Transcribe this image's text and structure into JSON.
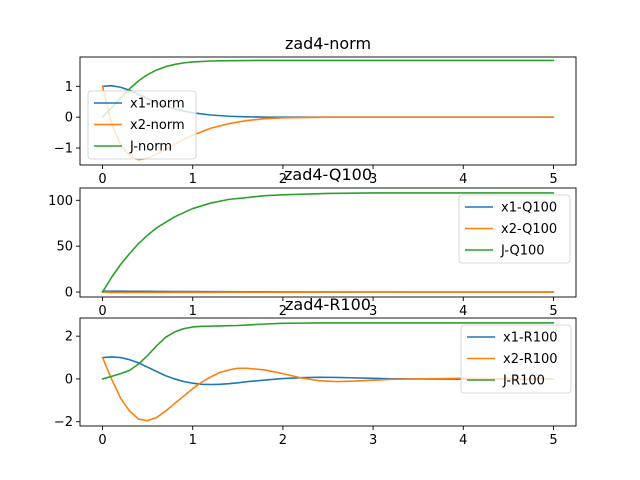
{
  "chart_data": [
    {
      "type": "line",
      "title": "zad4-norm",
      "xlabel": "",
      "ylabel": "",
      "xlim": [
        -0.25,
        5.25
      ],
      "ylim": [
        -1.55,
        1.95
      ],
      "xticks": [
        0,
        1,
        2,
        3,
        4,
        5
      ],
      "yticks": [
        -1,
        0,
        1
      ],
      "legend_placement": "lower-left",
      "grid": false,
      "x": [
        0,
        0.1,
        0.2,
        0.3,
        0.4,
        0.5,
        0.6,
        0.7,
        0.8,
        0.9,
        1.0,
        1.2,
        1.4,
        1.6,
        1.8,
        2.0,
        2.5,
        3.0,
        4.0,
        5.0
      ],
      "series": [
        {
          "name": "x1-norm",
          "color": "#1f77b4",
          "values": [
            1.0,
            1.02,
            0.97,
            0.87,
            0.74,
            0.6,
            0.47,
            0.36,
            0.27,
            0.2,
            0.14,
            0.07,
            0.03,
            0.01,
            0.0,
            0.0,
            0.0,
            0.0,
            0.0,
            0.0
          ]
        },
        {
          "name": "x2-norm",
          "color": "#ff7f0e",
          "values": [
            1.0,
            -0.2,
            -0.9,
            -1.25,
            -1.38,
            -1.33,
            -1.2,
            -1.05,
            -0.88,
            -0.72,
            -0.58,
            -0.36,
            -0.21,
            -0.11,
            -0.05,
            -0.02,
            0.0,
            0.0,
            0.0,
            0.0
          ]
        },
        {
          "name": "J-norm",
          "color": "#2ca02c",
          "values": [
            0.0,
            0.3,
            0.62,
            0.92,
            1.18,
            1.38,
            1.53,
            1.64,
            1.71,
            1.76,
            1.79,
            1.82,
            1.83,
            1.835,
            1.84,
            1.84,
            1.84,
            1.84,
            1.84,
            1.84
          ]
        }
      ]
    },
    {
      "type": "line",
      "title": "zad4-Q100",
      "xlabel": "",
      "ylabel": "",
      "xlim": [
        -0.25,
        5.25
      ],
      "ylim": [
        -5.4,
        113.4
      ],
      "xticks": [
        0,
        1,
        2,
        3,
        4,
        5
      ],
      "yticks": [
        0,
        50,
        100
      ],
      "legend_placement": "right",
      "grid": false,
      "x": [
        0,
        0.1,
        0.2,
        0.3,
        0.4,
        0.5,
        0.6,
        0.8,
        1.0,
        1.2,
        1.4,
        1.6,
        1.8,
        2.0,
        2.5,
        3.0,
        3.5,
        4.0,
        5.0
      ],
      "series": [
        {
          "name": "x1-Q100",
          "color": "#1f77b4",
          "values": [
            1.0,
            0.95,
            0.9,
            0.85,
            0.8,
            0.75,
            0.7,
            0.6,
            0.5,
            0.42,
            0.35,
            0.28,
            0.23,
            0.18,
            0.1,
            0.05,
            0.02,
            0.01,
            0.0
          ]
        },
        {
          "name": "x2-Q100",
          "color": "#ff7f0e",
          "values": [
            0.0,
            -0.4,
            -0.5,
            -0.5,
            -0.5,
            -0.45,
            -0.42,
            -0.36,
            -0.3,
            -0.25,
            -0.2,
            -0.16,
            -0.13,
            -0.1,
            -0.06,
            -0.03,
            -0.01,
            0.0,
            0.0
          ]
        },
        {
          "name": "J-Q100",
          "color": "#2ca02c",
          "values": [
            0,
            16,
            30,
            42,
            53,
            62,
            70,
            82,
            91,
            97,
            101,
            103,
            105,
            106,
            107.5,
            108,
            108,
            108,
            108
          ]
        }
      ]
    },
    {
      "type": "line",
      "title": "zad4-R100",
      "xlabel": "",
      "ylabel": "",
      "xlim": [
        -0.25,
        5.25
      ],
      "ylim": [
        -2.2,
        2.85
      ],
      "xticks": [
        0,
        1,
        2,
        3,
        4,
        5
      ],
      "yticks": [
        -2,
        0,
        2
      ],
      "legend_placement": "right",
      "grid": false,
      "x": [
        0,
        0.1,
        0.2,
        0.3,
        0.4,
        0.5,
        0.6,
        0.7,
        0.8,
        0.9,
        1.0,
        1.1,
        1.2,
        1.3,
        1.4,
        1.5,
        1.6,
        1.8,
        2.0,
        2.2,
        2.4,
        2.6,
        2.8,
        3.0,
        3.2,
        3.5,
        4.0,
        4.5,
        5.0
      ],
      "series": [
        {
          "name": "x1-R100",
          "color": "#1f77b4",
          "values": [
            1.0,
            1.03,
            1.0,
            0.9,
            0.75,
            0.55,
            0.35,
            0.15,
            0.0,
            -0.12,
            -0.2,
            -0.25,
            -0.26,
            -0.25,
            -0.22,
            -0.18,
            -0.13,
            -0.05,
            0.02,
            0.06,
            0.08,
            0.07,
            0.05,
            0.03,
            0.01,
            0.0,
            -0.01,
            0.0,
            0.0
          ]
        },
        {
          "name": "x2-R100",
          "color": "#ff7f0e",
          "values": [
            1.0,
            0.0,
            -0.9,
            -1.5,
            -1.88,
            -1.95,
            -1.8,
            -1.5,
            -1.15,
            -0.8,
            -0.45,
            -0.15,
            0.1,
            0.3,
            0.42,
            0.5,
            0.5,
            0.42,
            0.25,
            0.05,
            -0.08,
            -0.12,
            -0.1,
            -0.06,
            -0.02,
            0.0,
            0.03,
            0.01,
            0.0
          ]
        },
        {
          "name": "J-R100",
          "color": "#2ca02c",
          "values": [
            0.0,
            0.12,
            0.25,
            0.4,
            0.7,
            1.1,
            1.55,
            1.95,
            2.2,
            2.35,
            2.43,
            2.46,
            2.47,
            2.48,
            2.49,
            2.5,
            2.52,
            2.57,
            2.6,
            2.61,
            2.62,
            2.62,
            2.62,
            2.62,
            2.62,
            2.62,
            2.62,
            2.62,
            2.62
          ]
        }
      ]
    }
  ]
}
